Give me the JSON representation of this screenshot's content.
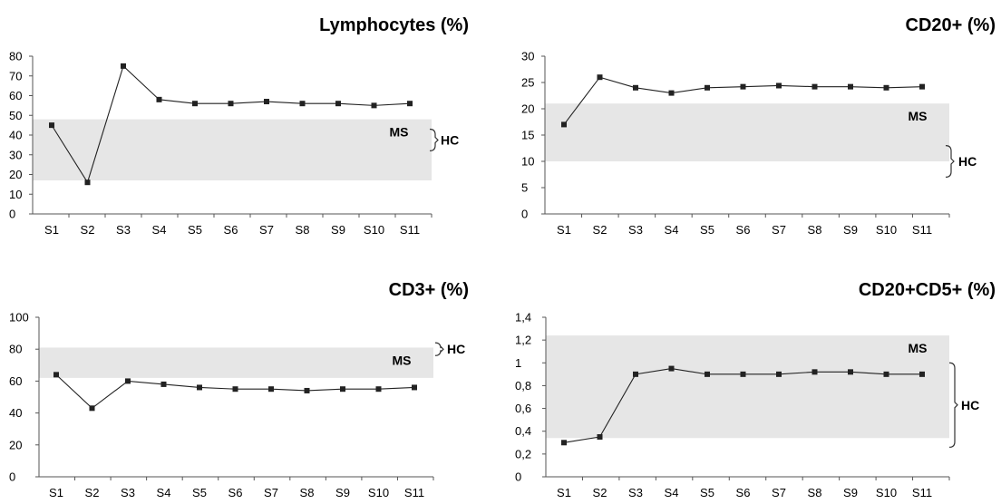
{
  "colors": {
    "band": "#e6e6e6",
    "line": "#222222",
    "axis": "#555555"
  },
  "chart_data": [
    {
      "type": "line",
      "title": "Lymphocytes (%)",
      "categories": [
        "S1",
        "S2",
        "S3",
        "S4",
        "S5",
        "S6",
        "S7",
        "S8",
        "S9",
        "S10",
        "S11"
      ],
      "values": [
        45,
        16,
        75,
        58,
        56,
        56,
        57,
        56,
        56,
        55,
        56
      ],
      "ylim": [
        0,
        80
      ],
      "yticks": [
        0,
        10,
        20,
        30,
        40,
        50,
        60,
        70,
        80
      ],
      "ytick_labels": [
        "0",
        "10",
        "20",
        "30",
        "40",
        "50",
        "60",
        "70",
        "80"
      ],
      "band": {
        "label": "MS",
        "range": [
          17,
          48
        ]
      },
      "bracket": {
        "label": "HC",
        "range": [
          32,
          43
        ]
      },
      "grid": false,
      "legend": "none"
    },
    {
      "type": "line",
      "title": "CD20+ (%)",
      "categories": [
        "S1",
        "S2",
        "S3",
        "S4",
        "S5",
        "S6",
        "S7",
        "S8",
        "S9",
        "S10",
        "S11"
      ],
      "values": [
        17,
        26,
        24,
        23,
        24,
        24.2,
        24.4,
        24.2,
        24.2,
        24,
        24.2
      ],
      "ylim": [
        0,
        30
      ],
      "yticks": [
        0,
        5,
        10,
        15,
        20,
        25,
        30
      ],
      "ytick_labels": [
        "0",
        "5",
        "10",
        "15",
        "20",
        "25",
        "30"
      ],
      "band": {
        "label": "MS",
        "range": [
          10,
          21
        ]
      },
      "bracket": {
        "label": "HC",
        "range": [
          7,
          13
        ]
      },
      "grid": false,
      "legend": "none"
    },
    {
      "type": "line",
      "title": "CD3+ (%)",
      "categories": [
        "S1",
        "S2",
        "S3",
        "S4",
        "S5",
        "S6",
        "S7",
        "S8",
        "S9",
        "S10",
        "S11"
      ],
      "values": [
        64,
        43,
        60,
        58,
        56,
        55,
        55,
        54,
        55,
        55,
        56
      ],
      "ylim": [
        0,
        100
      ],
      "yticks": [
        0,
        20,
        40,
        60,
        80,
        100
      ],
      "ytick_labels": [
        "0",
        "20",
        "40",
        "60",
        "80",
        "100"
      ],
      "band": {
        "label": "MS",
        "range": [
          62,
          81
        ]
      },
      "bracket": {
        "label": "HC",
        "range": [
          76,
          84
        ]
      },
      "grid": false,
      "legend": "none"
    },
    {
      "type": "line",
      "title": "CD20+CD5+ (%)",
      "categories": [
        "S1",
        "S2",
        "S3",
        "S4",
        "S5",
        "S6",
        "S7",
        "S8",
        "S9",
        "S10",
        "S11"
      ],
      "values": [
        0.3,
        0.35,
        0.9,
        0.95,
        0.9,
        0.9,
        0.9,
        0.92,
        0.92,
        0.9,
        0.9
      ],
      "ylim": [
        0,
        1.4
      ],
      "yticks": [
        0,
        0.2,
        0.4,
        0.6,
        0.8,
        1,
        1.2,
        1.4
      ],
      "ytick_labels": [
        "0",
        "0,2",
        "0,4",
        "0,6",
        "0,8",
        "1",
        "1,2",
        "1,4"
      ],
      "band": {
        "label": "MS",
        "range": [
          0.34,
          1.24
        ]
      },
      "bracket": {
        "label": "HC",
        "range": [
          0.26,
          1.0
        ]
      },
      "grid": false,
      "legend": "none"
    }
  ]
}
